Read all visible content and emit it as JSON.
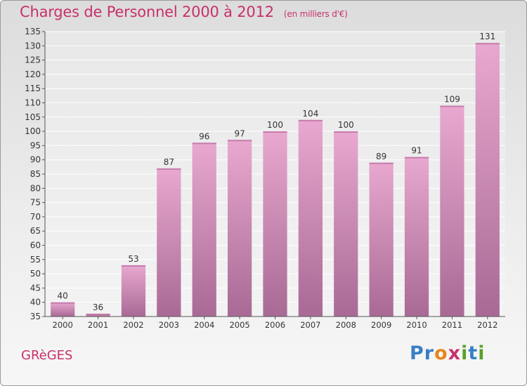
{
  "header": {
    "title": "Charges de Personnel 2000 à 2012",
    "unit": "(en milliers d'€)"
  },
  "footer": {
    "commune": "GRèGES",
    "logo": {
      "letters": [
        "P",
        "r",
        "o",
        "x",
        "i",
        "t",
        "i"
      ],
      "colors": [
        "#3a7fc4",
        "#3a7fc4",
        "#e8851c",
        "#c8306c",
        "#5aa02c",
        "#3a7fc4",
        "#5aa02c"
      ]
    }
  },
  "colors": {
    "bar_top": "#e8a8cf",
    "bar_bottom": "#a86a95",
    "text": "#c8306c",
    "axis": "#555555"
  },
  "chart_data": {
    "type": "bar",
    "title": "Charges de Personnel 2000 à 2012",
    "subtitle": "(en milliers d'€)",
    "categories": [
      "2000",
      "2001",
      "2002",
      "2003",
      "2004",
      "2005",
      "2006",
      "2007",
      "2008",
      "2009",
      "2010",
      "2011",
      "2012"
    ],
    "values": [
      40,
      36,
      53,
      87,
      96,
      97,
      100,
      104,
      100,
      89,
      91,
      109,
      131
    ],
    "xlabel": "",
    "ylabel": "",
    "ylim": [
      35,
      135
    ],
    "yticks": [
      35,
      40,
      45,
      50,
      55,
      60,
      65,
      70,
      75,
      80,
      85,
      90,
      95,
      100,
      105,
      110,
      115,
      120,
      125,
      130,
      135
    ],
    "grid": true,
    "legend": "none"
  }
}
